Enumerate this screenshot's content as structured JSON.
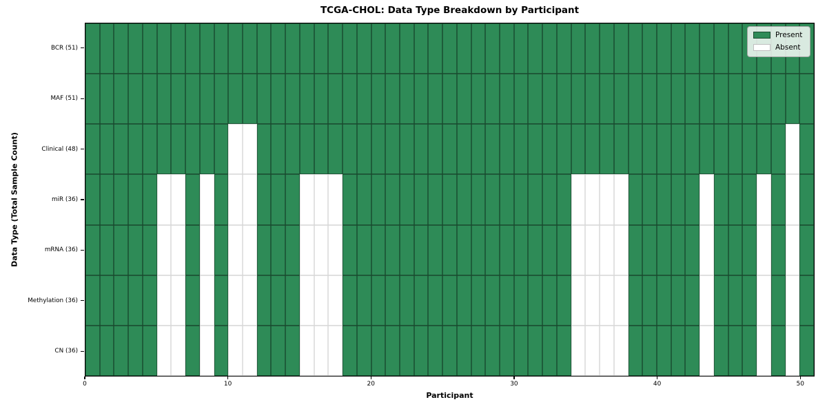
{
  "chart_data": {
    "type": "heatmap",
    "title": "TCGA-CHOL: Data Type Breakdown by Participant",
    "xlabel": "Participant",
    "ylabel": "Data Type (Total Sample Count)",
    "n_participants": 51,
    "x_range": [
      0,
      51
    ],
    "x_ticks": [
      0,
      10,
      20,
      30,
      40,
      50
    ],
    "grid": true,
    "colors": {
      "present": "#2e8b57",
      "absent": "#ffffff"
    },
    "legend": {
      "position": "upper right",
      "items": [
        {
          "label": "Present",
          "state": "present",
          "color": "#2e8b57"
        },
        {
          "label": "Absent",
          "state": "absent",
          "color": "#ffffff"
        }
      ]
    },
    "rows": [
      {
        "label": "BCR (51)",
        "data_type": "BCR",
        "total_samples": 51,
        "absent_participants": []
      },
      {
        "label": "MAF (51)",
        "data_type": "MAF",
        "total_samples": 51,
        "absent_participants": []
      },
      {
        "label": "Clinical (48)",
        "data_type": "Clinical",
        "total_samples": 48,
        "absent_participants": [
          10,
          11,
          49
        ]
      },
      {
        "label": "miR (36)",
        "data_type": "miR",
        "total_samples": 36,
        "absent_participants": [
          5,
          6,
          8,
          10,
          11,
          15,
          16,
          17,
          34,
          35,
          36,
          37,
          43,
          47,
          49
        ]
      },
      {
        "label": "mRNA (36)",
        "data_type": "mRNA",
        "total_samples": 36,
        "absent_participants": [
          5,
          6,
          8,
          10,
          11,
          15,
          16,
          17,
          34,
          35,
          36,
          37,
          43,
          47,
          49
        ]
      },
      {
        "label": "Methylation (36)",
        "data_type": "Methylation",
        "total_samples": 36,
        "absent_participants": [
          5,
          6,
          8,
          10,
          11,
          15,
          16,
          17,
          34,
          35,
          36,
          37,
          43,
          47,
          49
        ]
      },
      {
        "label": "CN (36)",
        "data_type": "CN",
        "total_samples": 36,
        "absent_participants": [
          5,
          6,
          8,
          10,
          11,
          15,
          16,
          17,
          34,
          35,
          36,
          37,
          43,
          47,
          49
        ]
      }
    ]
  }
}
